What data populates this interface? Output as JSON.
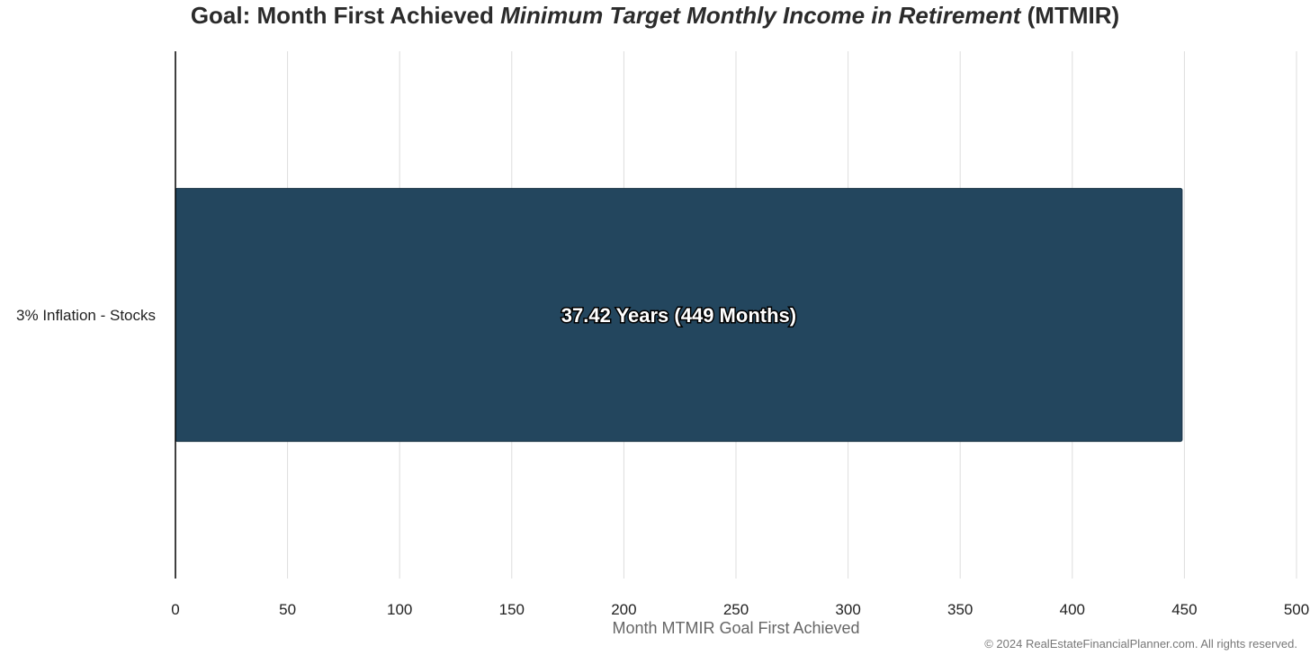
{
  "chart_data": {
    "type": "bar",
    "orientation": "horizontal",
    "title_prefix": "Goal: Month First Achieved ",
    "title_italic": "Minimum Target Monthly Income in Retirement",
    "title_suffix": " (MTMIR)",
    "categories": [
      "3% Inflation - Stocks"
    ],
    "values": [
      449
    ],
    "data_labels": [
      "37.42 Years (449 Months)"
    ],
    "xlabel": "Month MTMIR Goal First Achieved",
    "ylabel": "",
    "xlim": [
      0,
      500
    ],
    "xticks": [
      0,
      50,
      100,
      150,
      200,
      250,
      300,
      350,
      400,
      450,
      500
    ],
    "grid": true,
    "bar_color": "#23465E"
  },
  "footer": {
    "copyright": "© 2024 RealEstateFinancialPlanner.com. All rights reserved."
  }
}
